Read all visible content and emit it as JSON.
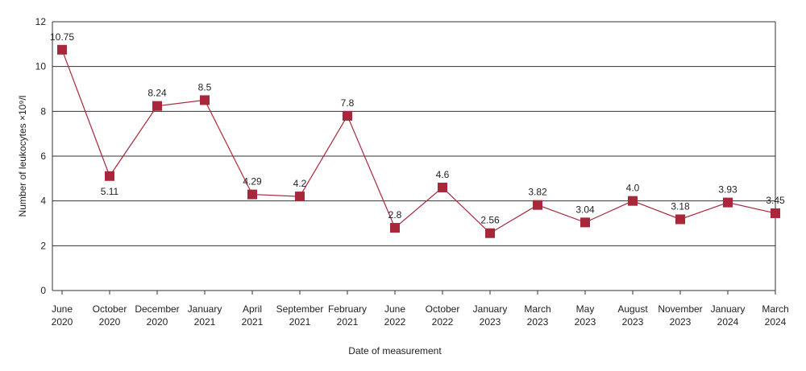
{
  "chart_data": {
    "type": "line",
    "x_label": "Date of measurement",
    "y_label": "Number of leukocytes ×10⁹/l",
    "categories": [
      "June 2020",
      "October 2020",
      "December 2020",
      "January 2021",
      "April 2021",
      "September 2021",
      "February 2021",
      "June 2022",
      "October 2022",
      "January 2023",
      "March 2023",
      "May 2023",
      "August 2023",
      "November 2023",
      "January 2024",
      "March 2024"
    ],
    "series": [
      {
        "color": "#a8273a",
        "values": [
          10.75,
          5.11,
          8.24,
          8.5,
          4.29,
          4.2,
          7.8,
          2.8,
          4.6,
          2.56,
          3.82,
          3.04,
          4.0,
          3.18,
          3.93,
          3.45
        ],
        "value_labels": [
          "10.75",
          "5.11",
          "8.24",
          "8.5",
          "4.29",
          "4.2",
          "7.8",
          "2.8",
          "4.6",
          "2.56",
          "3.82",
          "3.04",
          "4.0",
          "3.18",
          "3.93",
          "3.45"
        ]
      }
    ],
    "ylim": [
      0,
      12
    ],
    "yticks": [
      0,
      2,
      4,
      6,
      8,
      10,
      12
    ],
    "grid": true
  }
}
